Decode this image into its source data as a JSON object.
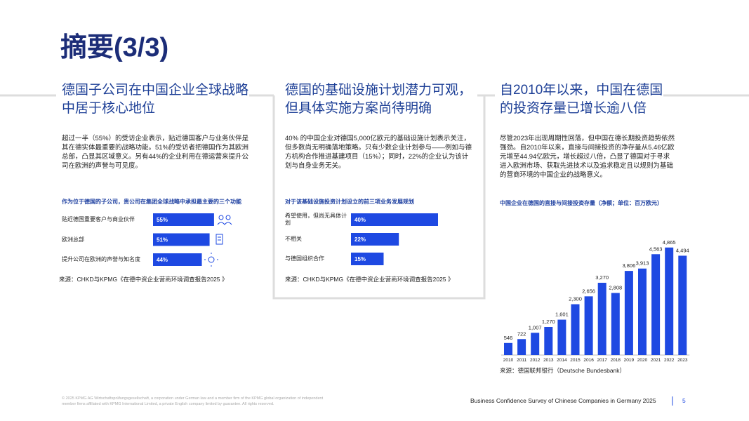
{
  "title": "摘要(3/3)",
  "columns": [
    {
      "heading": "德国子公司在中国企业全球战略中居于核心地位",
      "body": "超过一半（55%）的受访企业表示，贴近德国客户与业务伙伴是其在德实体最重要的战略功能。51%的受访者把德国作为其欧洲总部，凸显其区域意义。另有44%的企业利用在德运营来提升公司在欧洲的声誉与可见度。",
      "source": "来源：CHKD与KPMG《在德中资企业营商环境调查报告2025 》"
    },
    {
      "heading": "德国的基础设施计划潜力可观，但具体实施方案尚待明确",
      "body": "40% 的中国企业对德国5,000亿欧元的基础设施计划表示关注，但多数尚无明确落地策略。只有少数企业计划参与——例如与德方机构合作推进基建项目（15%）；同时，22%的企业认为该计划与自身业务无关。",
      "source": "来源：CHKD与KPMG《在德中资企业营商环境调查报告2025 》"
    },
    {
      "heading": "自2010年以来，中国在德国的投资存量已增长逾八倍",
      "body": "尽管2023年出现周期性回落，但中国在德长期投资趋势依然强劲。自2010年以来，直接与间接投资的净存量从5.46亿欧元增至44.94亿欧元，增长超过八倍，凸显了德国对于寻求进入欧洲市场、获取先进技术以及追求稳定且以规则为基础的营商环境的中国企业的战略意义。",
      "source": "来源：德国联邦银行（Deutsche Bundesbank）"
    }
  ],
  "chart_data": [
    {
      "type": "hbar",
      "title": "作为位于德国的子公司，贵公司在集团全球战略中承担最主要的三个功能",
      "categories": [
        "贴近德国重要客户与商业伙伴",
        "欧洲总部",
        "提升公司在欧洲的声誉与知名度"
      ],
      "values": [
        55,
        51,
        44
      ],
      "value_labels": [
        "55%",
        "51%",
        "44%"
      ],
      "color": "#1e49e2"
    },
    {
      "type": "hbar",
      "title": "对于该基础设施投资计划设立的前三项业务发展规划",
      "categories": [
        "希望使用，但尚无具体计划",
        "不相关",
        "与德国组织合作"
      ],
      "values": [
        40,
        22,
        15
      ],
      "value_labels": [
        "40%",
        "22%",
        "15%"
      ],
      "color": "#1e49e2"
    },
    {
      "type": "bar",
      "title": "中国企业在德国的直接与间接投资存量（净额；单位：百万欧元）",
      "categories": [
        "2010",
        "2011",
        "2012",
        "2013",
        "2014",
        "2015",
        "2016",
        "2017",
        "2018",
        "2019",
        "2020",
        "2021",
        "2022",
        "2023"
      ],
      "values": [
        546,
        722,
        1007,
        1270,
        1601,
        2300,
        2656,
        3270,
        2808,
        3806,
        3913,
        4563,
        4865,
        4494
      ],
      "value_labels": [
        "546",
        "722",
        "1,007",
        "1,270",
        "1,601",
        "2,300",
        "2,656",
        "3,270",
        "2,808",
        "3,806",
        "3,913",
        "4,563",
        "4,865",
        "4,494"
      ],
      "color": "#1e49e2"
    }
  ],
  "footer": {
    "legal": "© 2025 KPMG AG Wirtschaftsprüfungsgesellschaft, a corporation under German law and a member firm of the KPMG global organization of independent member firms affiliated with KPMG International Limited, a private English company limited by guarantee. All rights reserved.",
    "survey": "Business Confidence Survey of Chinese Companies in Germany 2025",
    "page": "5"
  }
}
